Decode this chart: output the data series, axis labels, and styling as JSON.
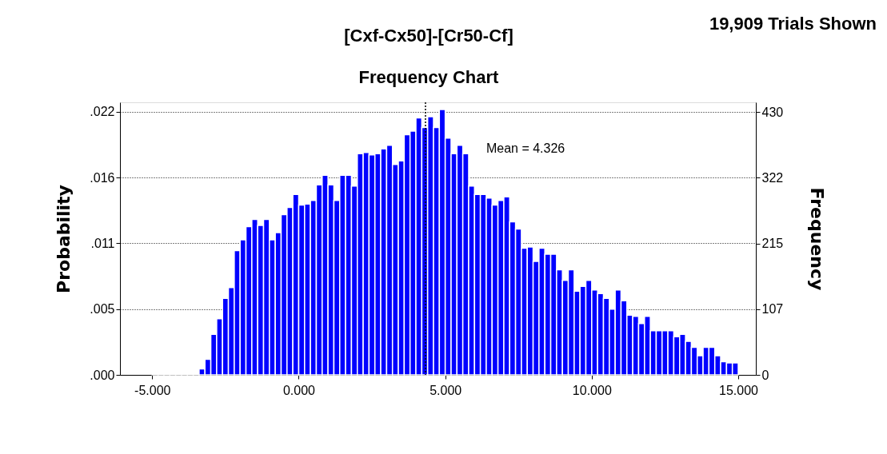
{
  "chart_data": {
    "type": "histogram",
    "title": "[Cxf-Cx50]-[Cr50-Cf]",
    "subtitle": "Frequency Chart",
    "ylabel": "Probability",
    "y2label": "Frequency",
    "color": "#0000ff",
    "bins": [
      -5,
      -4.8,
      -4.6,
      -4.4,
      -4.2,
      -4,
      -3.8,
      -3.6,
      -3.4,
      -3.2,
      -3,
      -2.8,
      -2.6,
      -2.4,
      -2.2,
      -2,
      -1.8,
      -1.6,
      -1.4,
      -1.2,
      -1,
      -0.8,
      -0.6,
      -0.4,
      -0.2,
      0,
      0.2,
      0.4,
      0.6,
      0.8,
      1,
      1.2,
      1.4,
      1.6,
      1.8,
      2,
      2.2,
      2.4,
      2.6,
      2.8,
      3,
      3.2,
      3.4,
      3.6,
      3.8,
      4,
      4.2,
      4.4,
      4.6,
      4.8,
      5,
      5.2,
      5.4,
      5.6,
      5.8,
      6,
      6.2,
      6.4,
      6.6,
      6.8,
      7,
      7.2,
      7.4,
      7.6,
      7.8,
      8,
      8.2,
      8.4,
      8.6,
      8.8,
      9,
      9.2,
      9.4,
      9.6,
      9.8,
      10,
      10.2,
      10.4,
      10.6,
      10.8,
      11,
      11.2,
      11.4,
      11.6,
      11.8,
      12,
      12.2,
      12.4,
      12.6,
      12.8,
      13,
      13.2,
      13.4,
      13.6,
      13.8,
      14,
      14.2,
      14.4,
      14.6,
      14.8,
      15
    ],
    "values": [
      0.0001,
      0.0001,
      0.0001,
      0.0001,
      0.0001,
      0.0001,
      0.0001,
      0.0001,
      0.0005,
      0.0013,
      0.0034,
      0.0047,
      0.0064,
      0.0073,
      0.0104,
      0.0113,
      0.0124,
      0.013,
      0.0125,
      0.013,
      0.0113,
      0.0119,
      0.0134,
      0.014,
      0.0151,
      0.0142,
      0.0143,
      0.0146,
      0.0159,
      0.0167,
      0.0159,
      0.0146,
      0.0167,
      0.0167,
      0.0158,
      0.0185,
      0.0186,
      0.0184,
      0.0185,
      0.0189,
      0.0192,
      0.0176,
      0.0179,
      0.0201,
      0.0204,
      0.0215,
      0.0207,
      0.0216,
      0.0207,
      0.0222,
      0.0198,
      0.0185,
      0.0192,
      0.0185,
      0.0158,
      0.0151,
      0.0151,
      0.0148,
      0.0142,
      0.0146,
      0.0149,
      0.0128,
      0.0122,
      0.0106,
      0.0107,
      0.0095,
      0.0106,
      0.0101,
      0.0101,
      0.0088,
      0.0079,
      0.0088,
      0.007,
      0.0074,
      0.0079,
      0.0071,
      0.0068,
      0.0064,
      0.0055,
      0.0071,
      0.0062,
      0.005,
      0.0049,
      0.0043,
      0.0049,
      0.0037,
      0.0037,
      0.0037,
      0.0037,
      0.0032,
      0.0034,
      0.0028,
      0.0023,
      0.0016,
      0.0023,
      0.0023,
      0.0016,
      0.0011,
      0.001,
      0.001
    ],
    "xlim": [
      -6.1,
      15.6
    ],
    "xticks": [
      {
        "value": -5,
        "label": "-5.000"
      },
      {
        "value": 0,
        "label": "0.000"
      },
      {
        "value": 5,
        "label": "5.000"
      },
      {
        "value": 10,
        "label": "10.000"
      },
      {
        "value": 15,
        "label": "15.000"
      }
    ],
    "ylim": [
      0,
      0.0228
    ],
    "yticks": [
      {
        "value": 0,
        "label": ".000"
      },
      {
        "value": 0.0055,
        "label": ".005"
      },
      {
        "value": 0.011,
        "label": ".011"
      },
      {
        "value": 0.0165,
        "label": ".016"
      },
      {
        "value": 0.022,
        "label": ".022"
      }
    ],
    "y2lim": [
      0,
      446
    ],
    "y2ticks": [
      0,
      {
        "value": 107.5,
        "label": "107"
      },
      215,
      {
        "value": 322.5,
        "label": "322"
      },
      430
    ],
    "grid": "y",
    "ref_lines": [
      {
        "axis": "x",
        "value": 4.326,
        "label": "Mean = 4.326",
        "line_style": "dotted",
        "color": "#000000"
      }
    ],
    "annotations": [
      "19,909 Trials Shown"
    ]
  }
}
